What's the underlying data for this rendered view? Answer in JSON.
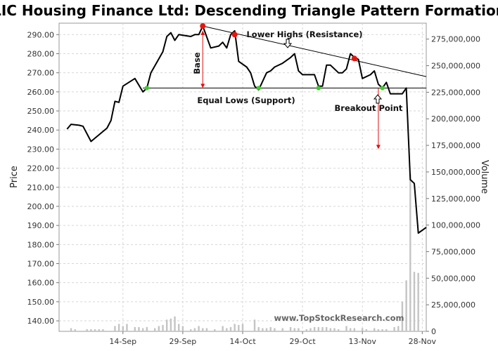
{
  "chart_data": {
    "type": "line",
    "title": "LIC Housing Finance Ltd: Descending Triangle Pattern Formation",
    "ylabel": "Price",
    "y2label": "Volume",
    "ylim": [
      134.5,
      296
    ],
    "y2lim": [
      0,
      290000000
    ],
    "price_ticks": [
      "140.00",
      "150.00",
      "160.00",
      "170.00",
      "180.00",
      "190.00",
      "200.00",
      "210.00",
      "220.00",
      "230.00",
      "240.00",
      "250.00",
      "260.00",
      "270.00",
      "280.00",
      "290.00"
    ],
    "price_tick_values": [
      140,
      150,
      160,
      170,
      180,
      190,
      200,
      210,
      220,
      230,
      240,
      250,
      260,
      270,
      280,
      290
    ],
    "volume_ticks": [
      "0",
      "25,000,000",
      "50,000,000",
      "75,000,000",
      "100,000,000",
      "125,000,000",
      "150,000,000",
      "175,000,000",
      "200,000,000",
      "225,000,000",
      "250,000,000",
      "275,000,000"
    ],
    "volume_tick_values": [
      0,
      25000000,
      50000000,
      75000000,
      100000000,
      125000000,
      150000000,
      175000000,
      200000000,
      225000000,
      250000000,
      275000000
    ],
    "x_tick_labels": [
      "14-Sep",
      "29-Sep",
      "14-Oct",
      "29-Oct",
      "13-Nov",
      "28-Nov"
    ],
    "x_tick_days": [
      14,
      29,
      44,
      59,
      74,
      89
    ],
    "x_range_days": [
      -2,
      90
    ],
    "grid": true,
    "series": [
      {
        "kind": "price",
        "points": [
          [
            0,
            240.5
          ],
          [
            1,
            243
          ],
          [
            3,
            242.5
          ],
          [
            4,
            242
          ],
          [
            6,
            234
          ],
          [
            10,
            241
          ],
          [
            11,
            245
          ],
          [
            12,
            255
          ],
          [
            13,
            254.5
          ],
          [
            14,
            263
          ],
          [
            17,
            267
          ],
          [
            19,
            260
          ],
          [
            20,
            262
          ],
          [
            21,
            270
          ],
          [
            24,
            281
          ],
          [
            25,
            289
          ],
          [
            26,
            291
          ],
          [
            27,
            287
          ],
          [
            28,
            290
          ],
          [
            31,
            289
          ],
          [
            32,
            290
          ],
          [
            33,
            290
          ],
          [
            34,
            294.5
          ],
          [
            36,
            283
          ],
          [
            38,
            284
          ],
          [
            39,
            286
          ],
          [
            40,
            283
          ],
          [
            41,
            290
          ],
          [
            42,
            292
          ],
          [
            43,
            276
          ],
          [
            45,
            273
          ],
          [
            46,
            270
          ],
          [
            47,
            263
          ],
          [
            48,
            261
          ],
          [
            50,
            270
          ],
          [
            51,
            271
          ],
          [
            52,
            273
          ],
          [
            54,
            275
          ],
          [
            56,
            278
          ],
          [
            57,
            280
          ],
          [
            58,
            271
          ],
          [
            59,
            269
          ],
          [
            60,
            269
          ],
          [
            61,
            269
          ],
          [
            62,
            269
          ],
          [
            63,
            263
          ],
          [
            64,
            263
          ],
          [
            65,
            274
          ],
          [
            66,
            274
          ],
          [
            67,
            272
          ],
          [
            68,
            270
          ],
          [
            69,
            270
          ],
          [
            70,
            272
          ],
          [
            71,
            280
          ],
          [
            72,
            278
          ],
          [
            73,
            277
          ],
          [
            74,
            267
          ],
          [
            76,
            269
          ],
          [
            77,
            271
          ],
          [
            78,
            264
          ],
          [
            79,
            262
          ],
          [
            80,
            265
          ],
          [
            81,
            259
          ],
          [
            82,
            259
          ],
          [
            83,
            259
          ],
          [
            84,
            259
          ],
          [
            85,
            262
          ],
          [
            86,
            214
          ],
          [
            87,
            212
          ],
          [
            88,
            186
          ],
          [
            90,
            189
          ]
        ]
      },
      {
        "kind": "volume",
        "points": [
          [
            1,
            3000000
          ],
          [
            2,
            2000000
          ],
          [
            5,
            2000000
          ],
          [
            6,
            2000000
          ],
          [
            7,
            2000000
          ],
          [
            8,
            2000000
          ],
          [
            9,
            2000000
          ],
          [
            12,
            5000000
          ],
          [
            13,
            7000000
          ],
          [
            14,
            5000000
          ],
          [
            15,
            7000000
          ],
          [
            17,
            4000000
          ],
          [
            18,
            4000000
          ],
          [
            19,
            3000000
          ],
          [
            20,
            4000000
          ],
          [
            22,
            3000000
          ],
          [
            23,
            5000000
          ],
          [
            24,
            6000000
          ],
          [
            25,
            11000000
          ],
          [
            26,
            12000000
          ],
          [
            27,
            14000000
          ],
          [
            28,
            7000000
          ],
          [
            29,
            5000000
          ],
          [
            31,
            2000000
          ],
          [
            32,
            3000000
          ],
          [
            33,
            5000000
          ],
          [
            34,
            3000000
          ],
          [
            35,
            3000000
          ],
          [
            37,
            2000000
          ],
          [
            39,
            5000000
          ],
          [
            40,
            3000000
          ],
          [
            41,
            4000000
          ],
          [
            42,
            7000000
          ],
          [
            43,
            6000000
          ],
          [
            44,
            7000000
          ],
          [
            47,
            11000000
          ],
          [
            48,
            4000000
          ],
          [
            49,
            3000000
          ],
          [
            50,
            3000000
          ],
          [
            51,
            4000000
          ],
          [
            52,
            3000000
          ],
          [
            54,
            3000000
          ],
          [
            56,
            4000000
          ],
          [
            57,
            3000000
          ],
          [
            58,
            3000000
          ],
          [
            60,
            2000000
          ],
          [
            61,
            3000000
          ],
          [
            62,
            4000000
          ],
          [
            63,
            4000000
          ],
          [
            64,
            4000000
          ],
          [
            65,
            4000000
          ],
          [
            66,
            3000000
          ],
          [
            67,
            3000000
          ],
          [
            68,
            2000000
          ],
          [
            70,
            5000000
          ],
          [
            71,
            3000000
          ],
          [
            72,
            3000000
          ],
          [
            74,
            3000000
          ],
          [
            75,
            2000000
          ],
          [
            77,
            3000000
          ],
          [
            78,
            2000000
          ],
          [
            79,
            2000000
          ],
          [
            80,
            2000000
          ],
          [
            82,
            4000000
          ],
          [
            83,
            5000000
          ],
          [
            84,
            28000000
          ],
          [
            85,
            48000000
          ],
          [
            86,
            148000000
          ],
          [
            87,
            56000000
          ],
          [
            88,
            55000000
          ]
        ]
      }
    ],
    "resistance_line": [
      [
        34,
        294.5
      ],
      [
        90,
        268
      ]
    ],
    "support_line": [
      [
        19,
        262
      ],
      [
        90,
        262
      ]
    ],
    "highs_markers": [
      [
        34,
        294.5
      ],
      [
        42,
        290
      ],
      [
        72,
        277.5
      ]
    ],
    "lows_markers": [
      [
        20,
        262
      ],
      [
        48,
        262
      ],
      [
        63,
        262
      ],
      [
        79,
        262
      ]
    ],
    "base_arrow": {
      "x_day": 34,
      "from": 292,
      "to": 262
    },
    "breakout_arrow": {
      "x_day": 78,
      "from": 262,
      "to": 230
    },
    "annotations": {
      "resistance": "Lower Highs (Resistance)",
      "support": "Equal Lows (Support)",
      "base": "Base",
      "breakout": "Breakout Point",
      "watermark": "www.TopStockResearch.com"
    },
    "colors": {
      "price_line": "#000000",
      "high_marker": "#e8140e",
      "low_marker": "#3ccc2a",
      "arrow": "#e01010",
      "volume_bar": "#c4c4c4",
      "grid": "#d6d6d6"
    }
  }
}
